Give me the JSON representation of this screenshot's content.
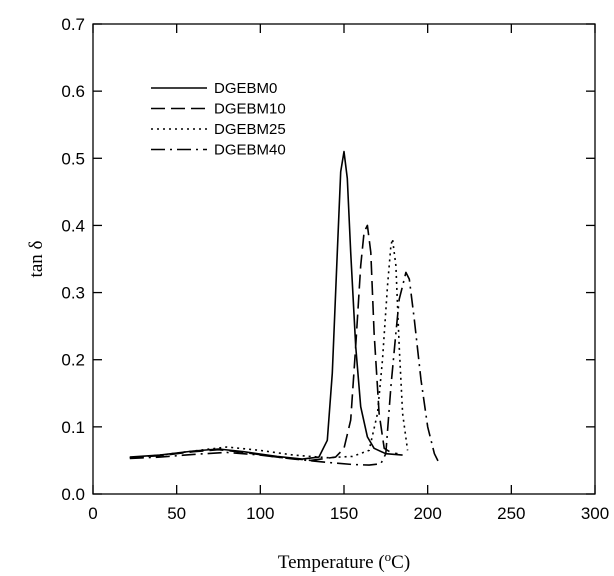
{
  "chart_data": {
    "type": "line",
    "xlabel": "Temperature (",
    "xlabel_sup": "o",
    "xlabel_unit": "C)",
    "ylabel": "tan δ",
    "xlim": [
      0,
      300
    ],
    "ylim": [
      0,
      0.7
    ],
    "x_ticks": [
      "0",
      "50",
      "100",
      "150",
      "200",
      "250",
      "300"
    ],
    "y_ticks": [
      "0.0",
      "0.1",
      "0.2",
      "0.3",
      "0.4",
      "0.5",
      "0.6",
      "0.7"
    ],
    "grid": false,
    "legend_position": "top-left",
    "series": [
      {
        "name": "DGEBM0",
        "dash": "solid",
        "x": [
          22,
          40,
          60,
          75,
          90,
          110,
          125,
          135,
          140,
          143,
          146,
          148,
          150,
          152,
          154,
          157,
          160,
          164,
          168,
          175,
          185
        ],
        "y": [
          0.055,
          0.058,
          0.064,
          0.067,
          0.063,
          0.056,
          0.052,
          0.055,
          0.08,
          0.18,
          0.36,
          0.48,
          0.51,
          0.47,
          0.36,
          0.22,
          0.13,
          0.085,
          0.068,
          0.06,
          0.058
        ]
      },
      {
        "name": "DGEBM10",
        "dash": "long",
        "x": [
          22,
          40,
          60,
          75,
          90,
          110,
          130,
          145,
          150,
          154,
          157,
          160,
          162,
          164,
          166,
          168,
          171,
          174,
          178,
          182
        ],
        "y": [
          0.054,
          0.057,
          0.063,
          0.066,
          0.062,
          0.055,
          0.05,
          0.055,
          0.068,
          0.11,
          0.22,
          0.34,
          0.39,
          0.4,
          0.36,
          0.24,
          0.12,
          0.068,
          0.062,
          0.06
        ]
      },
      {
        "name": "DGEBM25",
        "dash": "dotted",
        "x": [
          22,
          40,
          60,
          80,
          100,
          120,
          140,
          155,
          165,
          170,
          173,
          176,
          178,
          179,
          181,
          183,
          185,
          188
        ],
        "y": [
          0.054,
          0.058,
          0.064,
          0.07,
          0.065,
          0.058,
          0.054,
          0.056,
          0.065,
          0.12,
          0.2,
          0.31,
          0.37,
          0.38,
          0.34,
          0.22,
          0.12,
          0.065
        ]
      },
      {
        "name": "DGEBM40",
        "dash": "dashdot",
        "x": [
          22,
          40,
          60,
          80,
          100,
          120,
          140,
          155,
          165,
          172,
          175,
          178,
          181,
          183,
          185,
          187,
          189,
          192,
          196,
          200,
          204,
          207
        ],
        "y": [
          0.053,
          0.055,
          0.059,
          0.062,
          0.058,
          0.052,
          0.047,
          0.044,
          0.043,
          0.045,
          0.06,
          0.16,
          0.24,
          0.29,
          0.31,
          0.33,
          0.32,
          0.26,
          0.17,
          0.1,
          0.06,
          0.045
        ]
      }
    ]
  }
}
